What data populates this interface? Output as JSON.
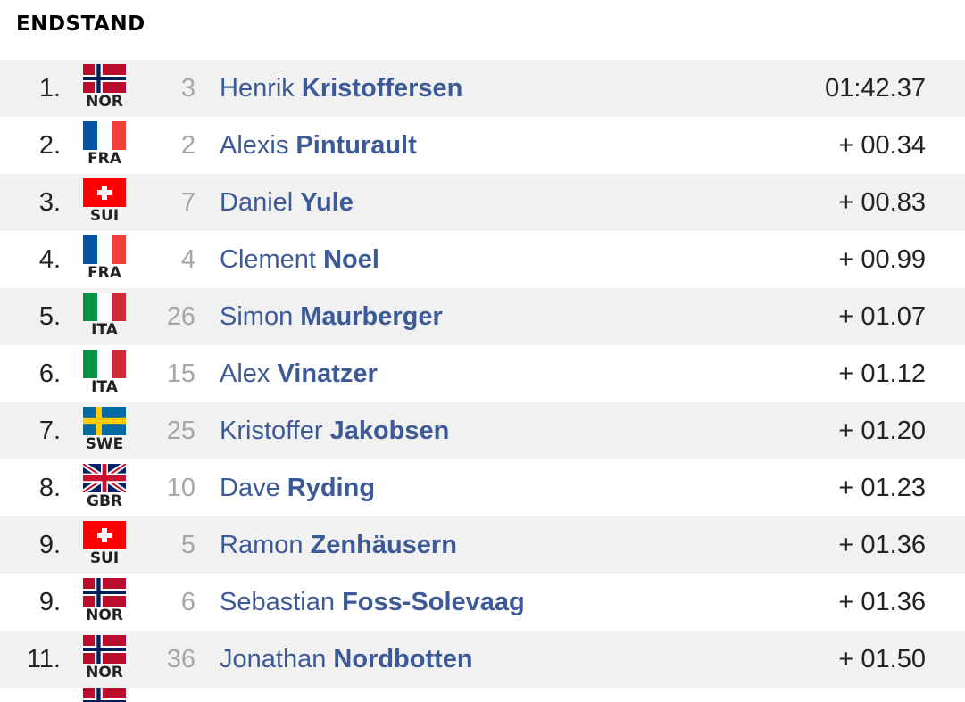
{
  "heading": "ENDSTAND",
  "results": [
    {
      "rank": "1.",
      "nation": "NOR",
      "bib": "3",
      "first": "Henrik",
      "last": "Kristoffersen",
      "time": "01:42.37"
    },
    {
      "rank": "2.",
      "nation": "FRA",
      "bib": "2",
      "first": "Alexis",
      "last": "Pinturault",
      "time": "+ 00.34"
    },
    {
      "rank": "3.",
      "nation": "SUI",
      "bib": "7",
      "first": "Daniel",
      "last": "Yule",
      "time": "+ 00.83"
    },
    {
      "rank": "4.",
      "nation": "FRA",
      "bib": "4",
      "first": "Clement",
      "last": "Noel",
      "time": "+ 00.99"
    },
    {
      "rank": "5.",
      "nation": "ITA",
      "bib": "26",
      "first": "Simon",
      "last": "Maurberger",
      "time": "+ 01.07"
    },
    {
      "rank": "6.",
      "nation": "ITA",
      "bib": "15",
      "first": "Alex",
      "last": "Vinatzer",
      "time": "+ 01.12"
    },
    {
      "rank": "7.",
      "nation": "SWE",
      "bib": "25",
      "first": "Kristoffer",
      "last": "Jakobsen",
      "time": "+ 01.20"
    },
    {
      "rank": "8.",
      "nation": "GBR",
      "bib": "10",
      "first": "Dave",
      "last": "Ryding",
      "time": "+ 01.23"
    },
    {
      "rank": "9.",
      "nation": "SUI",
      "bib": "5",
      "first": "Ramon",
      "last": "Zenhäusern",
      "time": "+ 01.36"
    },
    {
      "rank": "9.",
      "nation": "NOR",
      "bib": "6",
      "first": "Sebastian",
      "last": "Foss-Solevaag",
      "time": "+ 01.36"
    },
    {
      "rank": "11.",
      "nation": "NOR",
      "bib": "36",
      "first": "Jonathan",
      "last": "Nordbotten",
      "time": "+ 01.50"
    }
  ],
  "partial_row_flag": "NOR",
  "colors": {
    "name": "#3d5a98",
    "bib": "#a6a6a6",
    "row_alt": "#f1f1f1"
  }
}
